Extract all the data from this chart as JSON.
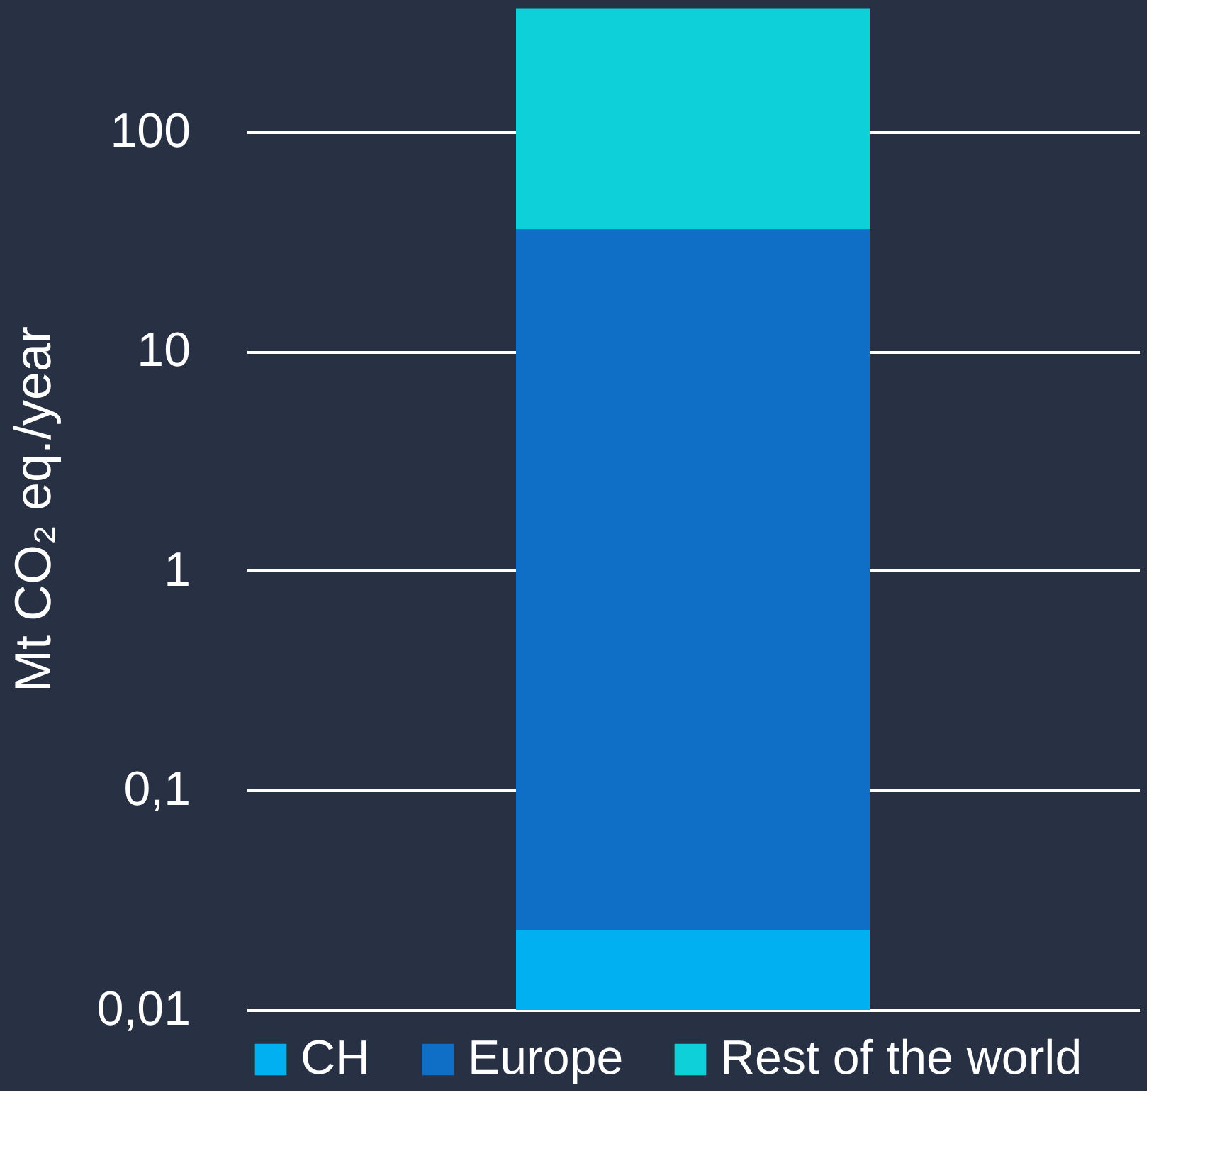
{
  "chart_data": {
    "type": "bar",
    "stacked": true,
    "log": "y",
    "categories": [
      null
    ],
    "series": [
      {
        "name": "CH",
        "color": "#00b0f0",
        "values": [
          0.023
        ]
      },
      {
        "name": "Europe",
        "color": "#0f6fc6",
        "values": [
          36
        ]
      },
      {
        "name": "Rest of the world",
        "color": "#0dd0d8",
        "values": [
          330
        ]
      }
    ],
    "ylabel": "Mt CO₂ eq./year",
    "ylim": [
      0.01,
      370
    ],
    "yticks": [
      {
        "value": 0.01,
        "label": "0,01"
      },
      {
        "value": 0.1,
        "label": "0,1"
      },
      1,
      10,
      100
    ],
    "grid": "y",
    "legend": "bottom",
    "tick_labels": "y"
  }
}
